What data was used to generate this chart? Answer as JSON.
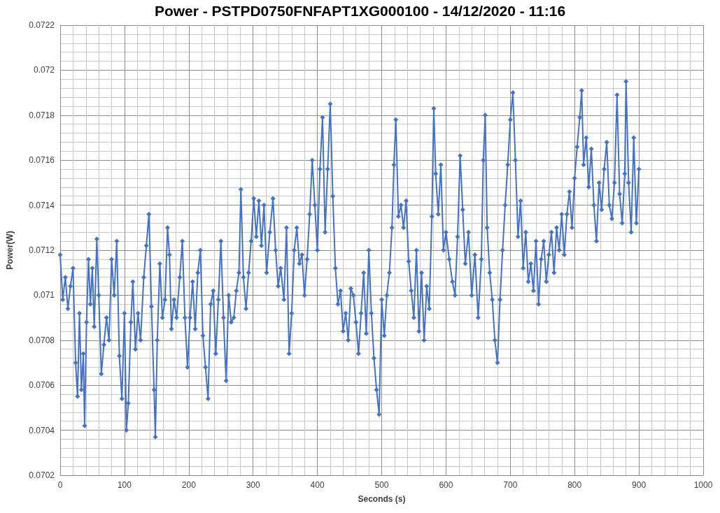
{
  "chart_data": {
    "type": "line",
    "title": "Power - PSTPD0750FNFAPT1XG000100 - 14/12/2020 - 11:16",
    "xlabel": "Seconds (s)",
    "ylabel": "Power(W)",
    "xlim": [
      0,
      1000
    ],
    "xticks": [
      0,
      100,
      200,
      300,
      400,
      500,
      600,
      700,
      800,
      900,
      1000
    ],
    "ylim": [
      0.0702,
      0.0722
    ],
    "yticks": [
      0.0702,
      0.0704,
      0.0706,
      0.0708,
      0.071,
      0.0712,
      0.0714,
      0.0716,
      0.0718,
      0.072,
      0.0722
    ],
    "grid": true,
    "marker": "diamond",
    "line_style": "solid",
    "x": [
      0,
      4,
      8,
      12,
      16,
      20,
      24,
      27,
      30,
      33,
      36,
      38,
      41,
      44,
      47,
      50,
      53,
      57,
      60,
      64,
      68,
      72,
      76,
      80,
      84,
      88,
      92,
      96,
      100,
      103,
      106,
      110,
      113,
      117,
      121,
      125,
      130,
      134,
      138,
      142,
      146,
      148,
      151,
      155,
      159,
      163,
      167,
      170,
      173,
      177,
      181,
      186,
      190,
      194,
      198,
      202,
      206,
      210,
      214,
      218,
      222,
      226,
      230,
      234,
      238,
      242,
      246,
      250,
      254,
      258,
      262,
      266,
      270,
      274,
      278,
      281,
      285,
      289,
      293,
      297,
      301,
      305,
      309,
      313,
      317,
      321,
      326,
      331,
      335,
      339,
      343,
      348,
      352,
      356,
      360,
      364,
      368,
      372,
      376,
      380,
      384,
      388,
      392,
      396,
      400,
      404,
      408,
      412,
      416,
      420,
      424,
      428,
      432,
      436,
      440,
      444,
      448,
      452,
      456,
      460,
      464,
      468,
      472,
      476,
      480,
      484,
      488,
      492,
      496,
      500,
      504,
      508,
      512,
      516,
      519,
      522,
      526,
      530,
      534,
      538,
      542,
      546,
      550,
      554,
      558,
      562,
      566,
      570,
      574,
      578,
      581,
      584,
      588,
      592,
      596,
      600,
      605,
      610,
      614,
      618,
      622,
      626,
      630,
      635,
      640,
      645,
      650,
      655,
      658,
      661,
      664,
      668,
      672,
      676,
      680,
      684,
      688,
      692,
      696,
      700,
      704,
      708,
      712,
      716,
      720,
      724,
      728,
      732,
      736,
      740,
      744,
      748,
      752,
      756,
      760,
      764,
      768,
      772,
      776,
      780,
      784,
      788,
      792,
      796,
      800,
      804,
      808,
      811,
      814,
      818,
      822,
      826,
      830,
      834,
      838,
      842,
      846,
      850,
      854,
      858,
      862,
      866,
      870,
      874,
      878,
      880,
      884,
      888,
      892,
      896,
      900
    ],
    "series": [
      {
        "color": "#4472c4",
        "values": [
          0.07118,
          0.07098,
          0.07108,
          0.07094,
          0.07104,
          0.07112,
          0.0707,
          0.07055,
          0.07092,
          0.07058,
          0.07074,
          0.07042,
          0.07088,
          0.07116,
          0.07096,
          0.07112,
          0.07086,
          0.07125,
          0.071,
          0.07065,
          0.07078,
          0.0709,
          0.0708,
          0.07116,
          0.071,
          0.07124,
          0.07073,
          0.07054,
          0.07092,
          0.0704,
          0.07052,
          0.07088,
          0.07106,
          0.07076,
          0.07092,
          0.0708,
          0.07108,
          0.07122,
          0.07136,
          0.07095,
          0.07058,
          0.07037,
          0.0708,
          0.07114,
          0.0709,
          0.07098,
          0.0713,
          0.07118,
          0.07085,
          0.07098,
          0.0709,
          0.07108,
          0.07124,
          0.0709,
          0.07068,
          0.0709,
          0.07106,
          0.07085,
          0.0711,
          0.0712,
          0.07082,
          0.07068,
          0.07054,
          0.07096,
          0.07102,
          0.07074,
          0.07098,
          0.07124,
          0.0709,
          0.07062,
          0.071,
          0.07088,
          0.0709,
          0.07102,
          0.0711,
          0.07147,
          0.07108,
          0.07094,
          0.0711,
          0.07124,
          0.07143,
          0.07126,
          0.07142,
          0.07122,
          0.0714,
          0.0711,
          0.07128,
          0.07143,
          0.0712,
          0.07104,
          0.07112,
          0.07098,
          0.0713,
          0.07074,
          0.07092,
          0.0712,
          0.0713,
          0.07114,
          0.07118,
          0.071,
          0.07116,
          0.07136,
          0.0716,
          0.0714,
          0.0712,
          0.07156,
          0.07179,
          0.07128,
          0.07156,
          0.07185,
          0.07144,
          0.07112,
          0.07096,
          0.07102,
          0.07084,
          0.07092,
          0.0708,
          0.07103,
          0.071,
          0.07088,
          0.07074,
          0.07092,
          0.0711,
          0.07083,
          0.0712,
          0.07092,
          0.07072,
          0.07058,
          0.07047,
          0.07098,
          0.07082,
          0.071,
          0.0711,
          0.0713,
          0.07158,
          0.07178,
          0.07135,
          0.0714,
          0.0713,
          0.07142,
          0.07115,
          0.07102,
          0.0709,
          0.0712,
          0.07084,
          0.0711,
          0.0708,
          0.07104,
          0.07094,
          0.07135,
          0.07183,
          0.07154,
          0.07136,
          0.07158,
          0.0712,
          0.07128,
          0.07116,
          0.07106,
          0.071,
          0.07126,
          0.07162,
          0.07138,
          0.07114,
          0.07128,
          0.071,
          0.07118,
          0.0709,
          0.07116,
          0.0716,
          0.0718,
          0.0713,
          0.0711,
          0.07098,
          0.0708,
          0.0707,
          0.07098,
          0.0712,
          0.0714,
          0.07158,
          0.07178,
          0.0719,
          0.0716,
          0.07126,
          0.07142,
          0.07112,
          0.07128,
          0.07106,
          0.07114,
          0.07102,
          0.07124,
          0.07096,
          0.07116,
          0.07124,
          0.07106,
          0.07118,
          0.07128,
          0.0711,
          0.0713,
          0.0712,
          0.07136,
          0.07118,
          0.07136,
          0.07146,
          0.0713,
          0.07152,
          0.07166,
          0.07179,
          0.07191,
          0.07158,
          0.0717,
          0.07148,
          0.07165,
          0.0714,
          0.07124,
          0.0715,
          0.07138,
          0.07156,
          0.07168,
          0.0714,
          0.07134,
          0.0715,
          0.07189,
          0.07145,
          0.07132,
          0.07154,
          0.07195,
          0.0715,
          0.07128,
          0.0717,
          0.07132,
          0.07156
        ]
      }
    ]
  }
}
